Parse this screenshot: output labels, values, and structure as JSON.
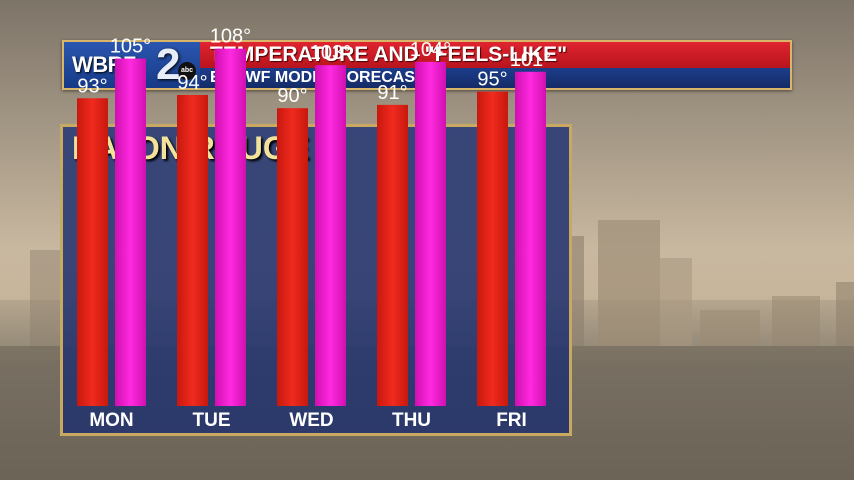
{
  "header": {
    "logo_text": "WBRZ",
    "logo_number": "2",
    "logo_badge": "abc",
    "title": "TEMPERATURE AND \"FEELS-LIKE\"",
    "subtitle": "ECMWF MODEL FORECAST"
  },
  "location": "BATON ROUGE",
  "colors": {
    "temperature_bar": "#e8281c",
    "feels_like_bar": "#f01ccc",
    "panel": "#2c3c76",
    "frame": "#c9a962",
    "city_label": "#f3e29a"
  },
  "chart_data": {
    "type": "bar",
    "categories": [
      "MON",
      "TUE",
      "WED",
      "THU",
      "FRI"
    ],
    "series": [
      {
        "values": [
          93,
          94,
          90,
          91,
          95
        ],
        "labels": [
          "93°",
          "94°",
          "90°",
          "91°",
          "95°"
        ]
      },
      {
        "values": [
          105,
          108,
          103,
          104,
          101
        ],
        "labels": [
          "105°",
          "108°",
          "103°",
          "104°",
          "101°"
        ]
      }
    ],
    "ylim": [
      0,
      110
    ],
    "grid": false
  }
}
